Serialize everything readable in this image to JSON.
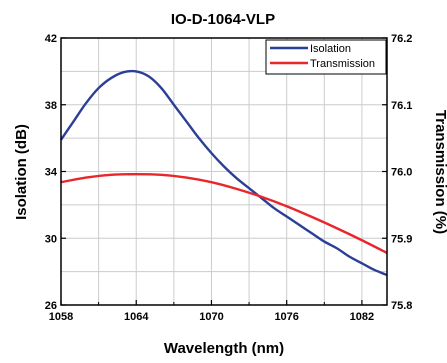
{
  "chart_data": {
    "type": "line",
    "title": "IO-D-1064-VLP",
    "xlabel": "Wavelength (nm)",
    "ylabel_left": "Isolation (dB)",
    "ylabel_right": "Transmission (%)",
    "xlim": [
      1058,
      1084
    ],
    "ylim_left": [
      26,
      42
    ],
    "ylim_right": [
      75.8,
      76.2
    ],
    "x_ticks": [
      "1058",
      "1064",
      "1070",
      "1076",
      "1082"
    ],
    "y_left_ticks": [
      "26",
      "30",
      "34",
      "38",
      "42"
    ],
    "y_right_ticks": [
      "75.8",
      "75.9",
      "76.0",
      "76.1",
      "76.2"
    ],
    "grid": true,
    "legend_position": "top-right",
    "series": [
      {
        "name": "Isolation",
        "axis": "left",
        "color": "#2b3f96",
        "x": [
          1058,
          1059,
          1060,
          1061,
          1062,
          1063,
          1064,
          1065,
          1066,
          1067,
          1068,
          1069,
          1070,
          1071,
          1072,
          1073,
          1074,
          1075,
          1076,
          1077,
          1078,
          1079,
          1080,
          1081,
          1082,
          1083,
          1084
        ],
        "values": [
          35.9,
          37.0,
          38.1,
          39.0,
          39.6,
          39.95,
          40.0,
          39.7,
          39.0,
          38.0,
          37.0,
          36.0,
          35.1,
          34.3,
          33.6,
          33.0,
          32.4,
          31.8,
          31.3,
          30.8,
          30.3,
          29.8,
          29.4,
          28.9,
          28.5,
          28.1,
          27.8
        ]
      },
      {
        "name": "Transmission",
        "axis": "right",
        "color": "#e8262b",
        "x": [
          1058,
          1060,
          1062,
          1064,
          1066,
          1068,
          1070,
          1072,
          1074,
          1076,
          1078,
          1080,
          1082,
          1084
        ],
        "values": [
          75.984,
          75.991,
          75.995,
          75.996,
          75.995,
          75.991,
          75.984,
          75.974,
          75.962,
          75.948,
          75.932,
          75.915,
          75.897,
          75.878
        ]
      }
    ]
  }
}
